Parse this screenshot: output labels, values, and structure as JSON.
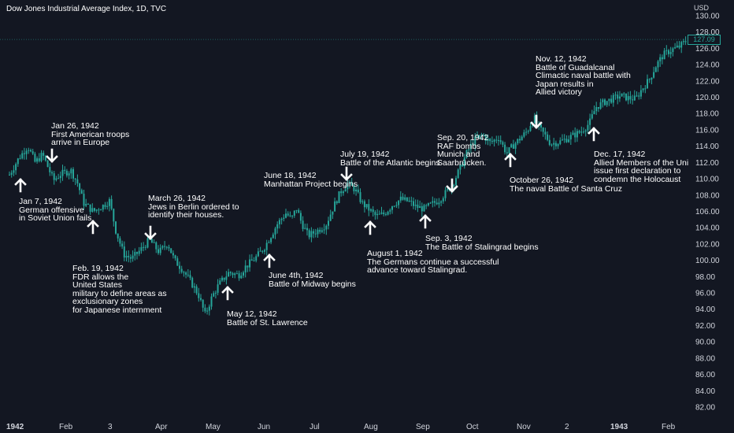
{
  "chart_data": {
    "type": "candlestick",
    "title": "Dow Jones Industrial Average Index, 1D, TVC",
    "currency": "USD",
    "ylim": [
      80.5,
      131
    ],
    "y_ticks": [
      "130.00",
      "128.00",
      "126.00",
      "124.00",
      "122.00",
      "120.00",
      "118.00",
      "116.00",
      "114.00",
      "112.00",
      "110.00",
      "108.00",
      "106.00",
      "104.00",
      "102.00",
      "100.00",
      "98.00",
      "96.00",
      "94.00",
      "92.00",
      "90.00",
      "88.00",
      "86.00",
      "84.00",
      "82.00"
    ],
    "x_ticks": [
      "1942",
      "Feb",
      "3",
      "Apr",
      "May",
      "Jun",
      "Jul",
      "Aug",
      "Sep",
      "Oct",
      "Nov",
      "2",
      "1943",
      "Feb"
    ],
    "last_price": "127.09",
    "colors": {
      "up": "#26a69a",
      "down": "#26a69a",
      "price_line": "#26a69a",
      "background": "#131722",
      "text": "#d1d4dc"
    },
    "price_path": [
      {
        "date": "1942-01-02",
        "close": 110.5
      },
      {
        "date": "1942-01-07",
        "close": 112.5
      },
      {
        "date": "1942-01-12",
        "close": 114.0
      },
      {
        "date": "1942-01-16",
        "close": 112.0
      },
      {
        "date": "1942-01-20",
        "close": 113.0
      },
      {
        "date": "1942-01-26",
        "close": 109.8
      },
      {
        "date": "1942-01-30",
        "close": 110.6
      },
      {
        "date": "1942-02-05",
        "close": 111.0
      },
      {
        "date": "1942-02-09",
        "close": 109.5
      },
      {
        "date": "1942-02-13",
        "close": 107.0
      },
      {
        "date": "1942-02-19",
        "close": 106.0
      },
      {
        "date": "1942-02-25",
        "close": 106.7
      },
      {
        "date": "1942-03-01",
        "close": 107.3
      },
      {
        "date": "1942-03-05",
        "close": 103.6
      },
      {
        "date": "1942-03-10",
        "close": 100.7
      },
      {
        "date": "1942-03-15",
        "close": 100.2
      },
      {
        "date": "1942-03-20",
        "close": 101.2
      },
      {
        "date": "1942-03-26",
        "close": 102.5
      },
      {
        "date": "1942-04-01",
        "close": 101.0
      },
      {
        "date": "1942-04-06",
        "close": 102.1
      },
      {
        "date": "1942-04-10",
        "close": 100.0
      },
      {
        "date": "1942-04-15",
        "close": 98.8
      },
      {
        "date": "1942-04-20",
        "close": 97.2
      },
      {
        "date": "1942-04-24",
        "close": 95.8
      },
      {
        "date": "1942-04-28",
        "close": 93.3
      },
      {
        "date": "1942-05-02",
        "close": 95.5
      },
      {
        "date": "1942-05-06",
        "close": 97.0
      },
      {
        "date": "1942-05-12",
        "close": 98.5
      },
      {
        "date": "1942-05-18",
        "close": 98.2
      },
      {
        "date": "1942-05-22",
        "close": 99.2
      },
      {
        "date": "1942-05-28",
        "close": 100.3
      },
      {
        "date": "1942-06-02",
        "close": 101.5
      },
      {
        "date": "1942-06-06",
        "close": 103.0
      },
      {
        "date": "1942-06-10",
        "close": 104.5
      },
      {
        "date": "1942-06-15",
        "close": 105.8
      },
      {
        "date": "1942-06-18",
        "close": 105.0
      },
      {
        "date": "1942-06-21",
        "close": 106.4
      },
      {
        "date": "1942-06-24",
        "close": 104.6
      },
      {
        "date": "1942-06-28",
        "close": 103.0
      },
      {
        "date": "1942-07-03",
        "close": 103.6
      },
      {
        "date": "1942-07-08",
        "close": 104.4
      },
      {
        "date": "1942-07-12",
        "close": 106.5
      },
      {
        "date": "1942-07-16",
        "close": 108.4
      },
      {
        "date": "1942-07-20",
        "close": 109.4
      },
      {
        "date": "1942-07-24",
        "close": 108.7
      },
      {
        "date": "1942-07-28",
        "close": 107.0
      },
      {
        "date": "1942-08-01",
        "close": 106.2
      },
      {
        "date": "1942-08-05",
        "close": 105.4
      },
      {
        "date": "1942-08-10",
        "close": 105.7
      },
      {
        "date": "1942-08-15",
        "close": 106.8
      },
      {
        "date": "1942-08-20",
        "close": 107.5
      },
      {
        "date": "1942-08-25",
        "close": 107.2
      },
      {
        "date": "1942-08-29",
        "close": 106.6
      },
      {
        "date": "1942-09-03",
        "close": 106.3
      },
      {
        "date": "1942-09-07",
        "close": 106.8
      },
      {
        "date": "1942-09-12",
        "close": 107.4
      },
      {
        "date": "1942-09-16",
        "close": 108.3
      },
      {
        "date": "1942-09-20",
        "close": 109.3
      },
      {
        "date": "1942-09-25",
        "close": 111.5
      },
      {
        "date": "1942-09-29",
        "close": 113.4
      },
      {
        "date": "1942-10-03",
        "close": 114.7
      },
      {
        "date": "1942-10-08",
        "close": 115.4
      },
      {
        "date": "1942-10-13",
        "close": 114.4
      },
      {
        "date": "1942-10-18",
        "close": 115.1
      },
      {
        "date": "1942-10-23",
        "close": 113.1
      },
      {
        "date": "1942-10-27",
        "close": 114.1
      },
      {
        "date": "1942-11-01",
        "close": 115.1
      },
      {
        "date": "1942-11-05",
        "close": 115.9
      },
      {
        "date": "1942-11-09",
        "close": 117.6
      },
      {
        "date": "1942-11-12",
        "close": 116.3
      },
      {
        "date": "1942-11-16",
        "close": 115.4
      },
      {
        "date": "1942-11-20",
        "close": 114.3
      },
      {
        "date": "1942-11-25",
        "close": 114.5
      },
      {
        "date": "1942-11-29",
        "close": 114.8
      },
      {
        "date": "1942-12-04",
        "close": 115.3
      },
      {
        "date": "1942-12-09",
        "close": 115.8
      },
      {
        "date": "1942-12-14",
        "close": 116.8
      },
      {
        "date": "1942-12-18",
        "close": 118.8
      },
      {
        "date": "1942-12-23",
        "close": 119.4
      },
      {
        "date": "1942-12-28",
        "close": 119.8
      },
      {
        "date": "1943-01-02",
        "close": 120.2
      },
      {
        "date": "1943-01-07",
        "close": 119.9
      },
      {
        "date": "1943-01-12",
        "close": 119.8
      },
      {
        "date": "1943-01-16",
        "close": 121.0
      },
      {
        "date": "1943-01-21",
        "close": 122.2
      },
      {
        "date": "1943-01-25",
        "close": 123.8
      },
      {
        "date": "1943-01-30",
        "close": 125.2
      },
      {
        "date": "1943-02-04",
        "close": 125.8
      },
      {
        "date": "1943-02-09",
        "close": 126.2
      },
      {
        "date": "1943-02-14",
        "close": 127.09
      }
    ],
    "annotations": [
      {
        "date": "Jan 26, 1942",
        "lines": [
          "Jan 26, 1942",
          "First American troops",
          "arrive in Europe"
        ]
      },
      {
        "date": "Jan 7, 1942",
        "lines": [
          "Jan 7, 1942",
          "German offensive",
          "in Soviet Union fails"
        ]
      },
      {
        "date": "March 26, 1942",
        "lines": [
          "March 26, 1942",
          "Jews in Berlin ordered to",
          "identify their houses."
        ]
      },
      {
        "date": "Feb. 19, 1942",
        "lines": [
          "Feb. 19, 1942",
          "FDR allows the",
          "United States",
          "military to define areas as",
          "exclusionary zones",
          "for Japanese internment"
        ]
      },
      {
        "date": "May 12, 1942",
        "lines": [
          "May 12, 1942",
          "Battle of St. Lawrence"
        ]
      },
      {
        "date": "June 18, 1942",
        "lines": [
          "June 18, 1942",
          "Manhattan Project begins"
        ]
      },
      {
        "date": "June 4th, 1942",
        "lines": [
          "June 4th, 1942",
          "Battle of Midway begins"
        ]
      },
      {
        "date": "July 19, 1942",
        "lines": [
          "July 19, 1942",
          "Battle of the Atlantic begins"
        ]
      },
      {
        "date": "August 1, 1942",
        "lines": [
          "August 1, 1942",
          "The Germans continue a successful",
          "advance toward Stalingrad."
        ]
      },
      {
        "date": "Sep. 3, 1942",
        "lines": [
          "Sep. 3, 1942",
          "The Battle of Stalingrad begins"
        ]
      },
      {
        "date": "Sep. 20, 1942",
        "lines": [
          "Sep. 20, 1942",
          "RAF bombs",
          "Munich and",
          "Saarbrücken."
        ]
      },
      {
        "date": "October 26, 1942",
        "lines": [
          "October 26, 1942",
          "The naval Battle of Santa Cruz"
        ]
      },
      {
        "date": "Nov. 12, 1942",
        "lines": [
          "Nov. 12, 1942",
          "Battle of Guadalcanal",
          "Climactic naval battle with",
          "Japan results in",
          "Allied victory"
        ]
      },
      {
        "date": "Dec. 17, 1942",
        "lines": [
          "Dec. 17, 1942",
          "Allied Members of the Uni",
          "issue first declaration to",
          "condemn the Holocaust"
        ]
      }
    ]
  }
}
